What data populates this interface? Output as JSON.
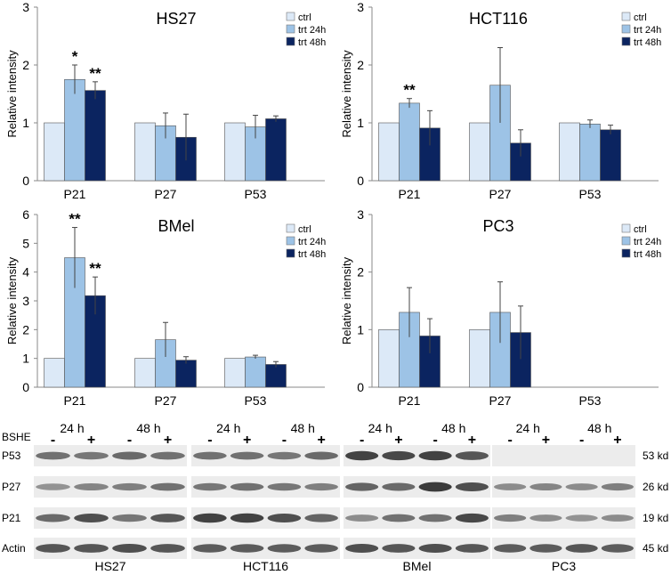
{
  "colors": {
    "ctrl": "#dce9f7",
    "trt24": "#9dc3e6",
    "trt48": "#0b2460",
    "axis": "#888888",
    "errorbar": "#444444",
    "bands": "#2a2a2a",
    "blot_bg": "#ececec"
  },
  "chart_data": [
    {
      "type": "bar",
      "title": "HS27",
      "ylabel": "Relative intensity",
      "xlabel": "",
      "ylim": [
        0,
        3
      ],
      "yticks": [
        "0",
        "1",
        "2",
        "3"
      ],
      "grid": false,
      "legend": "top-right",
      "categories": [
        "P21",
        "P27",
        "P53"
      ],
      "series": [
        {
          "name": "ctrl",
          "values": [
            1.0,
            1.0,
            1.0
          ],
          "errors": [
            0,
            0,
            0
          ]
        },
        {
          "name": "trt 24h",
          "values": [
            1.75,
            0.95,
            0.93
          ],
          "errors": [
            0.25,
            0.22,
            0.2
          ]
        },
        {
          "name": "trt 48h",
          "values": [
            1.56,
            0.75,
            1.07
          ],
          "errors": [
            0.15,
            0.4,
            0.05
          ]
        }
      ],
      "annotations": [
        {
          "category": 0,
          "series": 1,
          "text": "*"
        },
        {
          "category": 0,
          "series": 2,
          "text": "**"
        }
      ]
    },
    {
      "type": "bar",
      "title": "HCT116",
      "ylabel": "Relative intensity",
      "xlabel": "",
      "ylim": [
        0,
        3
      ],
      "yticks": [
        "0",
        "1",
        "2",
        "3"
      ],
      "grid": false,
      "legend": "top-right",
      "categories": [
        "P21",
        "P27",
        "P53"
      ],
      "series": [
        {
          "name": "ctrl",
          "values": [
            1.0,
            1.0,
            1.0
          ],
          "errors": [
            0,
            0,
            0
          ]
        },
        {
          "name": "trt 24h",
          "values": [
            1.34,
            1.65,
            0.98
          ],
          "errors": [
            0.08,
            0.65,
            0.07
          ]
        },
        {
          "name": "trt 48h",
          "values": [
            0.91,
            0.65,
            0.88
          ],
          "errors": [
            0.3,
            0.23,
            0.08
          ]
        }
      ],
      "annotations": [
        {
          "category": 0,
          "series": 1,
          "text": "**"
        }
      ]
    },
    {
      "type": "bar",
      "title": "BMel",
      "ylabel": "Relative intensity",
      "xlabel": "",
      "ylim": [
        0,
        6
      ],
      "yticks": [
        "0",
        "1",
        "2",
        "3",
        "4",
        "5",
        "6"
      ],
      "grid": false,
      "legend": "top-right",
      "categories": [
        "P21",
        "P27",
        "P53"
      ],
      "series": [
        {
          "name": "ctrl",
          "values": [
            1.0,
            1.0,
            1.0
          ],
          "errors": [
            0,
            0,
            0
          ]
        },
        {
          "name": "trt 24h",
          "values": [
            4.5,
            1.65,
            1.05
          ],
          "errors": [
            1.05,
            0.6,
            0.06
          ]
        },
        {
          "name": "trt 48h",
          "values": [
            3.18,
            0.94,
            0.79
          ],
          "errors": [
            0.65,
            0.12,
            0.1
          ]
        }
      ],
      "annotations": [
        {
          "category": 0,
          "series": 1,
          "text": "**"
        },
        {
          "category": 0,
          "series": 2,
          "text": "**"
        }
      ]
    },
    {
      "type": "bar",
      "title": "PC3",
      "ylabel": "Relative intensity",
      "xlabel": "",
      "ylim": [
        0,
        3
      ],
      "yticks": [
        "0",
        "1",
        "2",
        "3"
      ],
      "grid": false,
      "legend": "top-right",
      "categories": [
        "P21",
        "P27",
        "P53"
      ],
      "series": [
        {
          "name": "ctrl",
          "values": [
            1.0,
            1.0,
            null
          ],
          "errors": [
            0,
            0,
            0
          ]
        },
        {
          "name": "trt 24h",
          "values": [
            1.3,
            1.3,
            null
          ],
          "errors": [
            0.43,
            0.53,
            0
          ]
        },
        {
          "name": "trt 48h",
          "values": [
            0.89,
            0.95,
            null
          ],
          "errors": [
            0.3,
            0.46,
            0
          ]
        }
      ],
      "annotations": []
    }
  ],
  "blot": {
    "treatment_label": "BSHE",
    "time_labels": [
      "24 h",
      "48 h"
    ],
    "lane_signs": [
      "-",
      "+",
      "-",
      "+"
    ],
    "rows": [
      "P53",
      "P27",
      "P21",
      "Actin"
    ],
    "kd_labels": [
      "53 kd",
      "26 kd",
      "19 kd",
      "45 kd"
    ],
    "cell_lines": [
      "HS27",
      "HCT116",
      "BMel",
      "PC3"
    ],
    "intensities": [
      [
        [
          0.55,
          0.5,
          0.6,
          0.55
        ],
        [
          0.55,
          0.55,
          0.5,
          0.6
        ],
        [
          0.9,
          0.85,
          0.9,
          0.75
        ],
        [
          0,
          0,
          0,
          0
        ]
      ],
      [
        [
          0.3,
          0.4,
          0.45,
          0.55
        ],
        [
          0.5,
          0.55,
          0.5,
          0.45
        ],
        [
          0.65,
          0.6,
          0.95,
          0.8
        ],
        [
          0.35,
          0.4,
          0.35,
          0.45
        ]
      ],
      [
        [
          0.6,
          0.8,
          0.5,
          0.75
        ],
        [
          0.9,
          0.9,
          0.8,
          0.65
        ],
        [
          0.35,
          0.55,
          0.55,
          0.85
        ],
        [
          0.45,
          0.35,
          0.3,
          0.35
        ]
      ],
      [
        [
          0.75,
          0.75,
          0.8,
          0.75
        ],
        [
          0.7,
          0.7,
          0.7,
          0.7
        ],
        [
          0.8,
          0.75,
          0.8,
          0.75
        ],
        [
          0.7,
          0.7,
          0.75,
          0.7
        ]
      ]
    ]
  }
}
